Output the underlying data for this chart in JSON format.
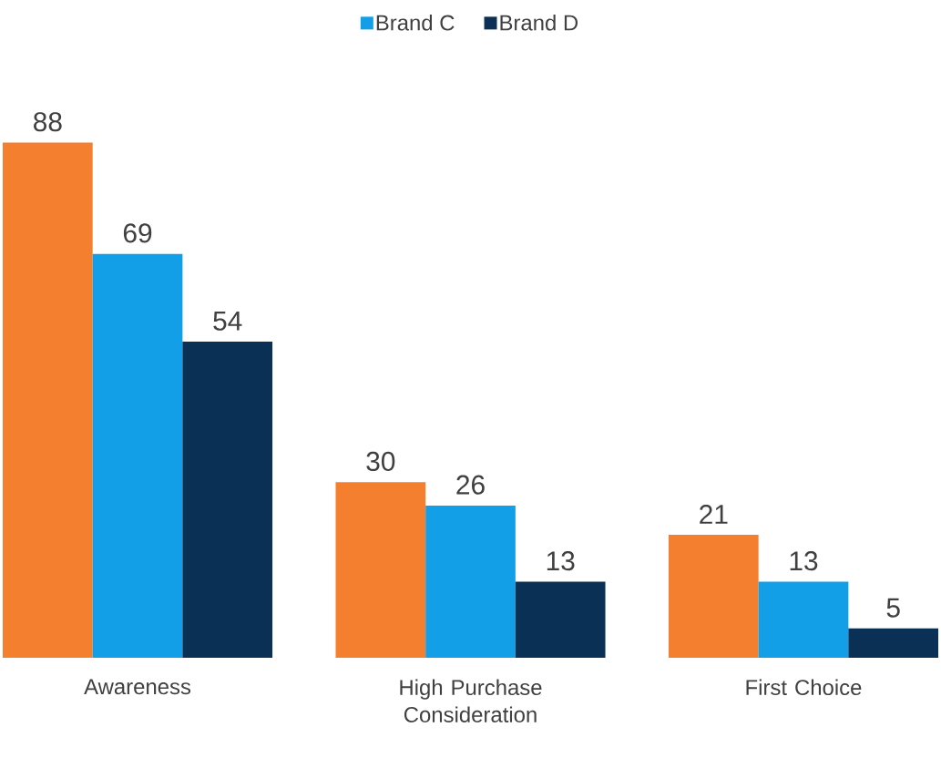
{
  "chart_data": {
    "type": "bar",
    "categories": [
      "Awareness",
      "High Purchase Consideration",
      "First Choice"
    ],
    "series": [
      {
        "color": "#f47f2e",
        "values": [
          88,
          30,
          21
        ]
      },
      {
        "name": "Brand C",
        "color": "#139ee8",
        "values": [
          69,
          26,
          13
        ]
      },
      {
        "name": "Brand D",
        "color": "#0b3055",
        "values": [
          54,
          13,
          5
        ]
      }
    ],
    "data_labels": true,
    "legend": "top"
  }
}
